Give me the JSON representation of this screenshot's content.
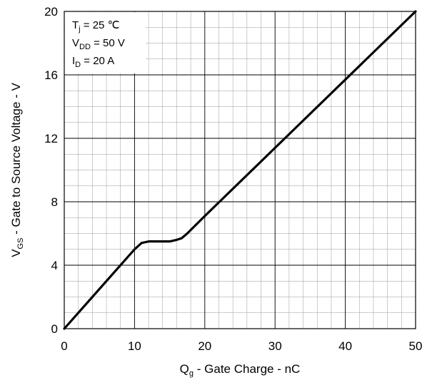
{
  "chart_data": {
    "type": "line",
    "x_axis": {
      "label_main": "Q",
      "label_sub": "g",
      "label_rest": " - Gate Charge - nC",
      "min": 0,
      "max": 50,
      "major_ticks": [
        0,
        10,
        20,
        30,
        40,
        50
      ],
      "tick_labels": [
        "0",
        "10",
        "20",
        "30",
        "40",
        "50"
      ],
      "minor_step": 2
    },
    "y_axis": {
      "label_main": "V",
      "label_sub": "GS",
      "label_rest": " - Gate to Source Voltage - V",
      "min": 0,
      "max": 20,
      "major_ticks": [
        0,
        4,
        8,
        12,
        16,
        20
      ],
      "tick_labels": [
        "0",
        "4",
        "8",
        "12",
        "16",
        "20"
      ],
      "minor_step": 1
    },
    "grid": true,
    "series": [
      {
        "x": [
          0,
          10,
          11,
          12,
          13,
          14,
          15,
          16,
          16.7,
          17.5,
          20,
          30,
          40,
          50
        ],
        "y": [
          0,
          5.0,
          5.4,
          5.5,
          5.5,
          5.5,
          5.5,
          5.6,
          5.7,
          6.0,
          7.1,
          11.4,
          15.7,
          20.0
        ],
        "color": "#000000"
      }
    ],
    "annotations": [
      {
        "main": "T",
        "sub": "j",
        "rest": " = 25 ℃"
      },
      {
        "main": "V",
        "sub": "DD",
        "rest": " = 50 V"
      },
      {
        "main": "I",
        "sub": "D",
        "rest": " = 20 A"
      }
    ]
  }
}
